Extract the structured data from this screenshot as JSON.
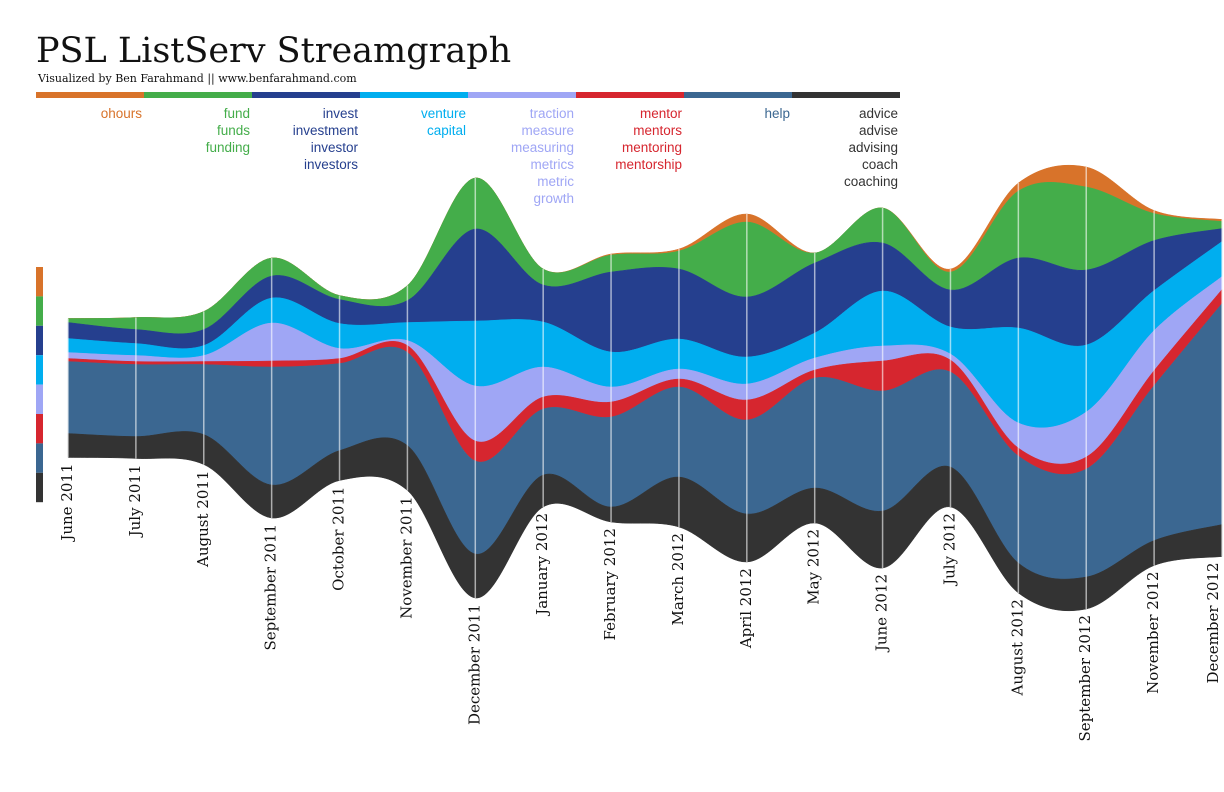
{
  "chart_data": {
    "type": "streamgraph",
    "title": "PSL ListServ Streamgraph",
    "subtitle": "Visualized by Ben Farahmand || www.benfarahmand.com",
    "categories": [
      "June 2011",
      "July 2011",
      "August 2011",
      "September 2011",
      "October 2011",
      "November 2011",
      "December 2011",
      "January 2012",
      "February 2012",
      "March 2012",
      "April 2012",
      "May 2012",
      "June 2012",
      "July 2012",
      "August 2012",
      "September 2012",
      "November 2012",
      "December 2012"
    ],
    "series": [
      {
        "terms": [
          "ohours"
        ],
        "color": "#d8732a",
        "values": [
          0,
          0,
          0,
          0,
          0,
          0,
          0,
          0,
          1,
          2,
          8,
          0,
          0,
          3,
          8,
          20,
          3,
          2
        ]
      },
      {
        "terms": [
          "fund",
          "funds",
          "funding"
        ],
        "color": "#44ad4a",
        "values": [
          4,
          12,
          18,
          18,
          4,
          15,
          51,
          16,
          17,
          18,
          75,
          10,
          35,
          18,
          67,
          83,
          27,
          7
        ]
      },
      {
        "terms": [
          "invest",
          "investment",
          "investor",
          "investors"
        ],
        "color": "#253f8e",
        "values": [
          16,
          14,
          16,
          22,
          24,
          22,
          92,
          37,
          80,
          70,
          60,
          70,
          48,
          37,
          70,
          75,
          50,
          13
        ]
      },
      {
        "terms": [
          "venture",
          "capital"
        ],
        "color": "#00aeef",
        "values": [
          14,
          12,
          10,
          25,
          25,
          18,
          65,
          45,
          35,
          30,
          27,
          25,
          55,
          27,
          95,
          67,
          40,
          35
        ]
      },
      {
        "terms": [
          "traction",
          "measure",
          "measuring",
          "metrics",
          "metric",
          "growth"
        ],
        "color": "#9fa6f5",
        "values": [
          6,
          6,
          6,
          38,
          10,
          5,
          55,
          30,
          15,
          10,
          16,
          12,
          15,
          6,
          25,
          45,
          40,
          13
        ]
      },
      {
        "terms": [
          "mentor",
          "mentors",
          "mentoring",
          "mentorship"
        ],
        "color": "#d6262f",
        "values": [
          3,
          3,
          3,
          6,
          5,
          7,
          20,
          12,
          15,
          8,
          20,
          8,
          30,
          12,
          8,
          12,
          15,
          14
        ]
      },
      {
        "terms": [
          "help"
        ],
        "color": "#3b6791",
        "values": [
          72,
          72,
          70,
          118,
          87,
          93,
          93,
          66,
          90,
          90,
          94,
          110,
          120,
          95,
          107,
          108,
          155,
          221
        ]
      },
      {
        "terms": [
          "advice",
          "advise",
          "advising",
          "coach",
          "coaching"
        ],
        "color": "#333333",
        "values": [
          24,
          22,
          30,
          33,
          30,
          45,
          44,
          32,
          15,
          50,
          48,
          35,
          57,
          40,
          30,
          32,
          25,
          32
        ]
      }
    ]
  }
}
